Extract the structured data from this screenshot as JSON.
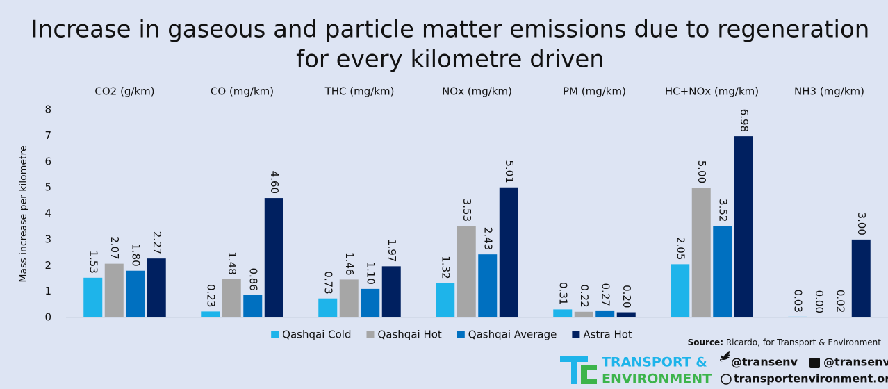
{
  "chart_data": {
    "type": "bar",
    "title": [
      "Increase in gaseous and particle matter emissions due to regeneration",
      "for every kilometre driven"
    ],
    "y_label": "Mass increase per kilometre",
    "categories": [
      "CO2 (g/km)",
      "CO (mg/km)",
      "THC (mg/km)",
      "NOx (mg/km)",
      "PM (mg/km)",
      "HC+NOx (mg/km)",
      "NH3 (mg/km)"
    ],
    "series": [
      {
        "name": "Qashqai Cold",
        "color": "#1eb4ea",
        "values": [
          1.53,
          0.23,
          0.73,
          1.32,
          0.31,
          2.05,
          0.03
        ],
        "value_labels": [
          "1.53",
          "0.23",
          "0.73",
          "1.32",
          "0.31",
          "2.05",
          "0.03"
        ]
      },
      {
        "name": "Qashqai Hot",
        "color": "#a6a6a6",
        "values": [
          2.07,
          1.48,
          1.46,
          3.53,
          0.22,
          5.0,
          0.0
        ],
        "value_labels": [
          "2.07",
          "1.48",
          "1.46",
          "3.53",
          "0.22",
          "5.00",
          "0.00"
        ]
      },
      {
        "name": "Qashqai Average",
        "color": "#0070c0",
        "values": [
          1.8,
          0.86,
          1.1,
          2.43,
          0.27,
          3.52,
          0.02
        ],
        "value_labels": [
          "1.80",
          "0.86",
          "1.10",
          "2.43",
          "0.27",
          "3.52",
          "0.02"
        ]
      },
      {
        "name": "Astra Hot",
        "color": "#002060",
        "values": [
          2.27,
          4.6,
          1.97,
          5.01,
          0.2,
          6.98,
          3.0
        ],
        "value_labels": [
          "2.27",
          "4.60",
          "1.97",
          "5.01",
          "0.20",
          "6.98",
          "3.00"
        ]
      }
    ],
    "ylim": [
      0,
      8
    ],
    "yticks": [
      0,
      1,
      2,
      3,
      4,
      5,
      6,
      7,
      8
    ],
    "grid": false,
    "legend": "bottom"
  },
  "source": {
    "label": "Source:",
    "text": "Ricardo, for Transport & Environment"
  },
  "footer": {
    "logo": [
      "TRANSPORT &",
      "ENVIRONMENT"
    ],
    "twitter": "@transenv",
    "facebook": "@transenv",
    "website": "transportenvironment.org"
  }
}
